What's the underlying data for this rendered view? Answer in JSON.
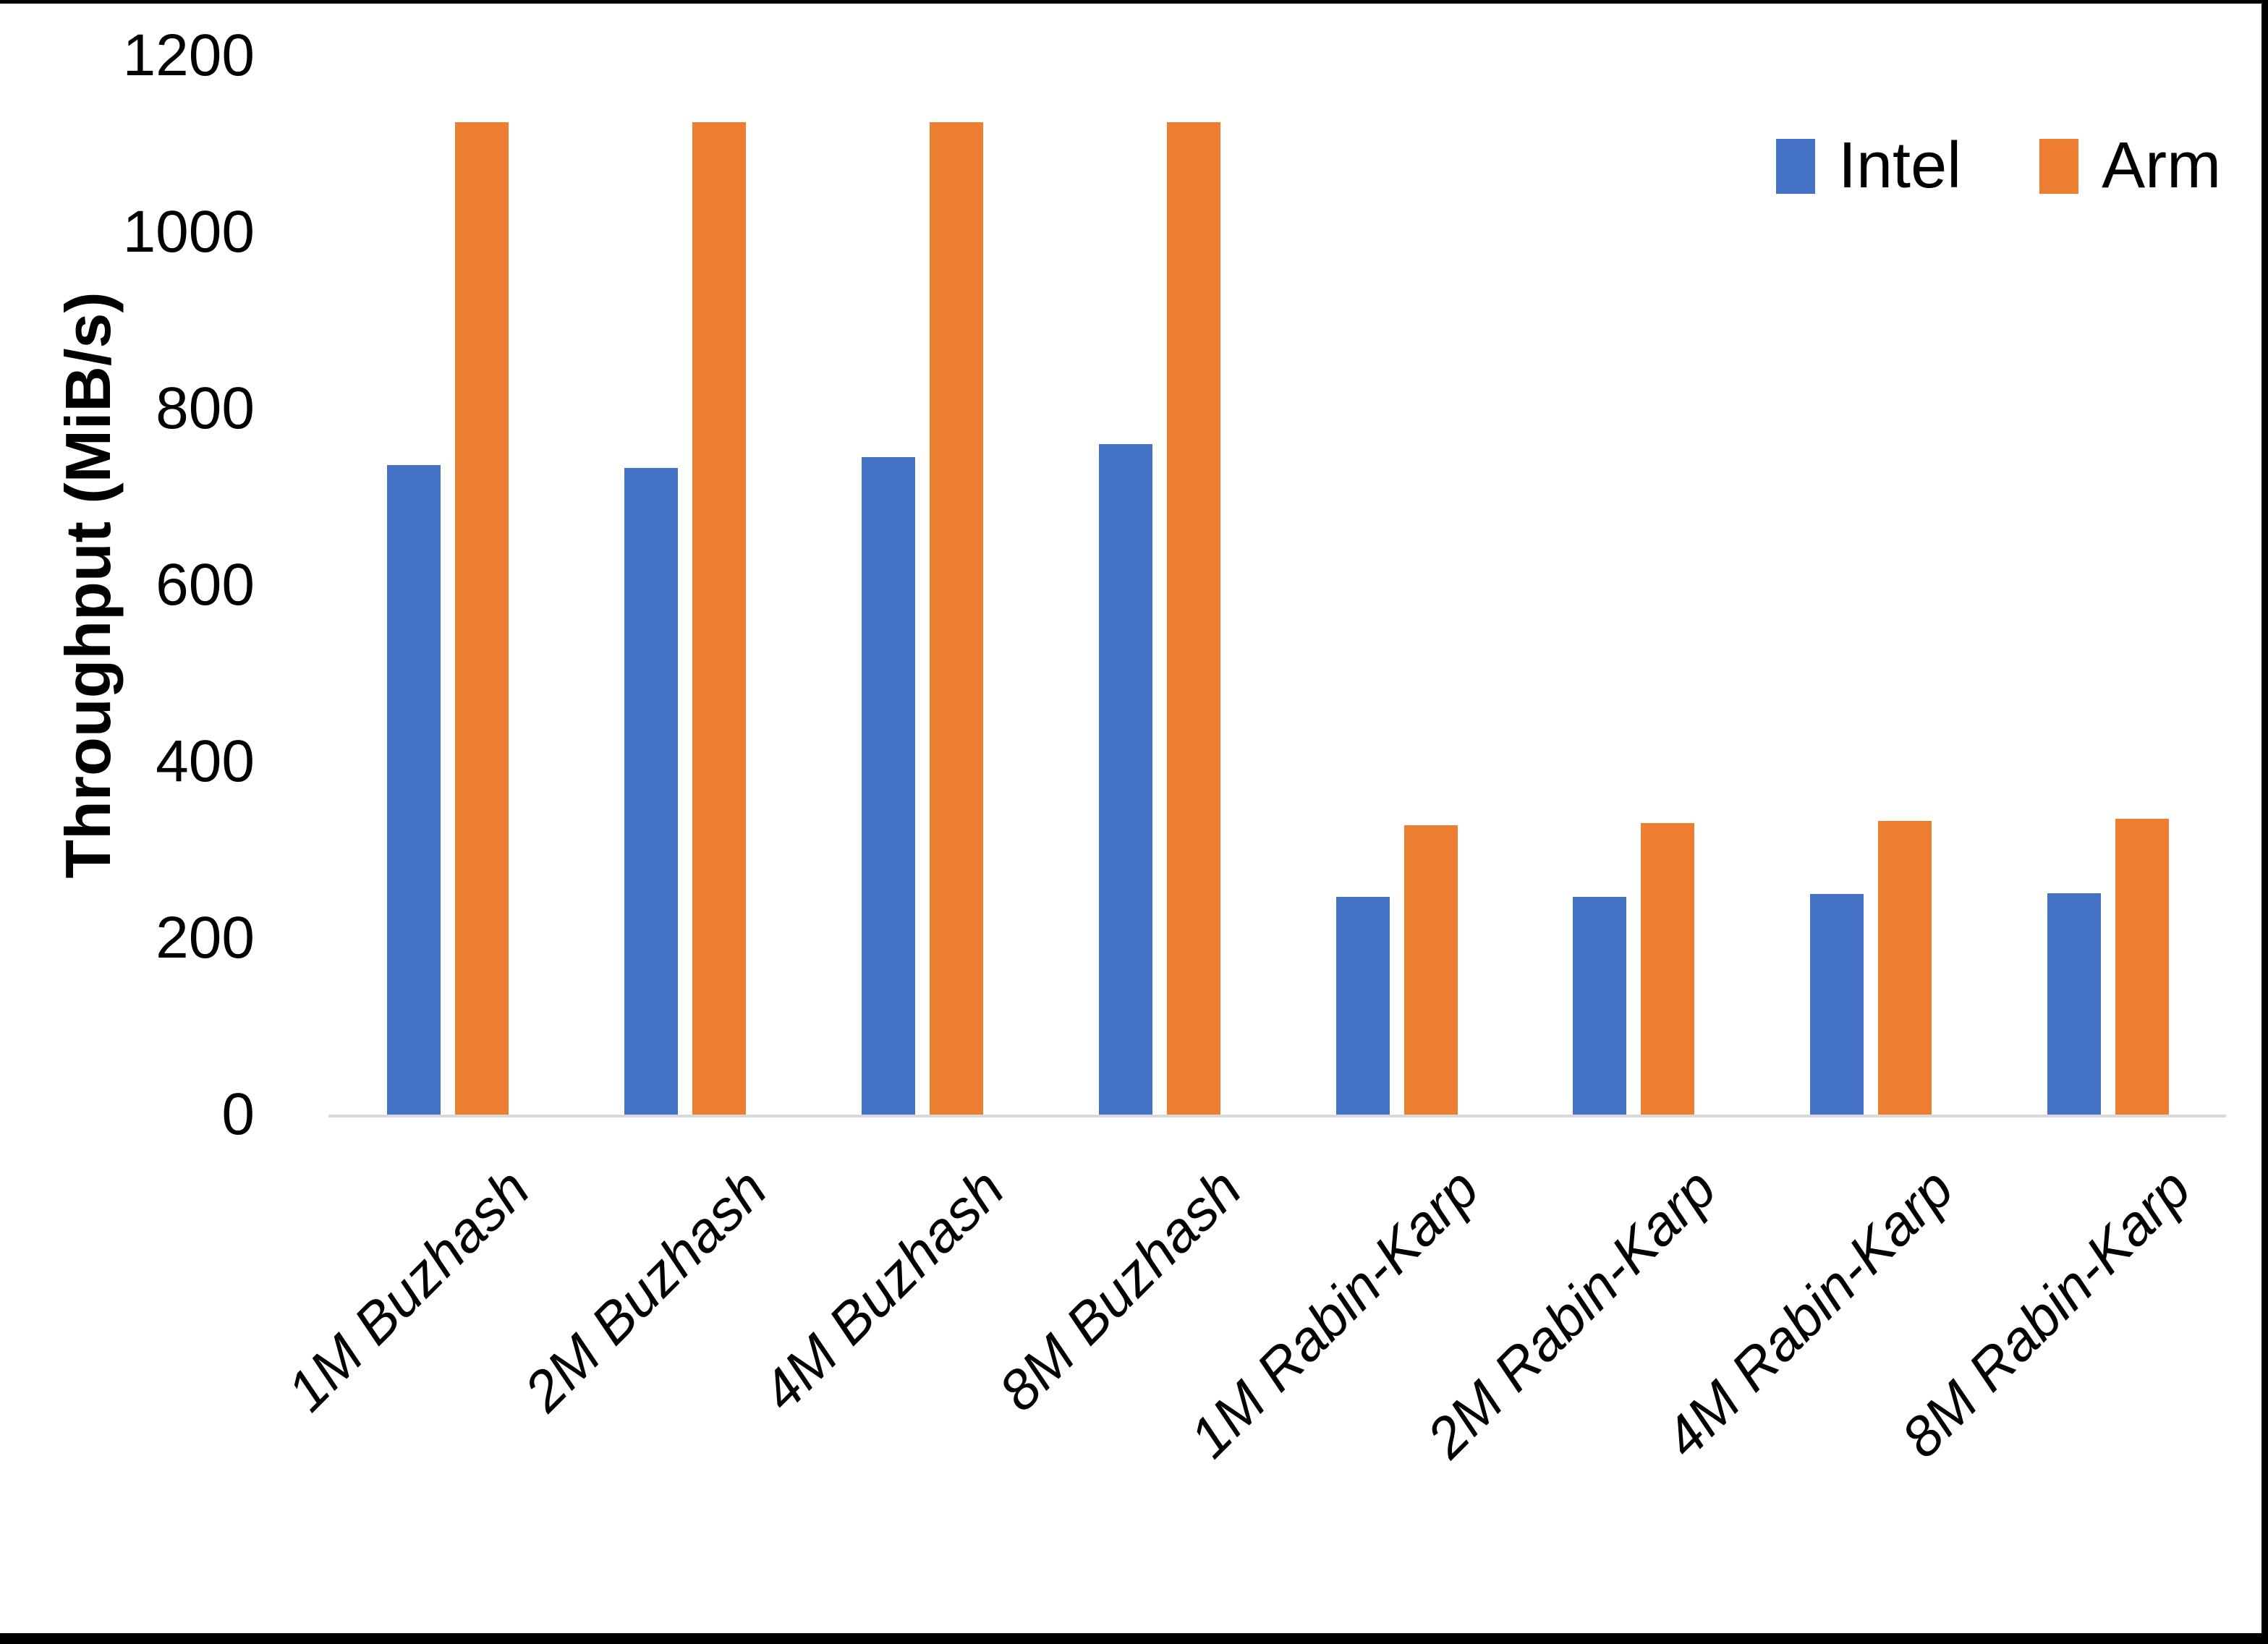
{
  "page": {
    "background": "#ffffff",
    "frame_border_color": "#000000",
    "axis_line_color": "#d9d9d9",
    "text_color": "#000000"
  },
  "chart_data": {
    "type": "bar",
    "title": "",
    "xlabel": "",
    "ylabel": "Throughput (MiB/s)",
    "ylim": [
      0,
      1200
    ],
    "yticks": [
      0,
      200,
      400,
      600,
      800,
      1000,
      1200
    ],
    "grid": false,
    "legend_position": "top-right",
    "categories": [
      "1M Buzhash",
      "2M Buzhash",
      "4M Buzhash",
      "8M Buzhash",
      "1M Rabin-Karp",
      "2M Rabin-Karp",
      "4M Rabin-Karp",
      "8M Rabin-Karp"
    ],
    "series": [
      {
        "name": "Intel",
        "color": "#4472C4",
        "values": [
          736,
          733,
          745,
          760,
          247,
          247,
          250,
          251
        ]
      },
      {
        "name": "Arm",
        "color": "#ED7D31",
        "values": [
          1125,
          1125,
          1125,
          1125,
          328,
          330,
          333,
          335
        ]
      }
    ]
  }
}
